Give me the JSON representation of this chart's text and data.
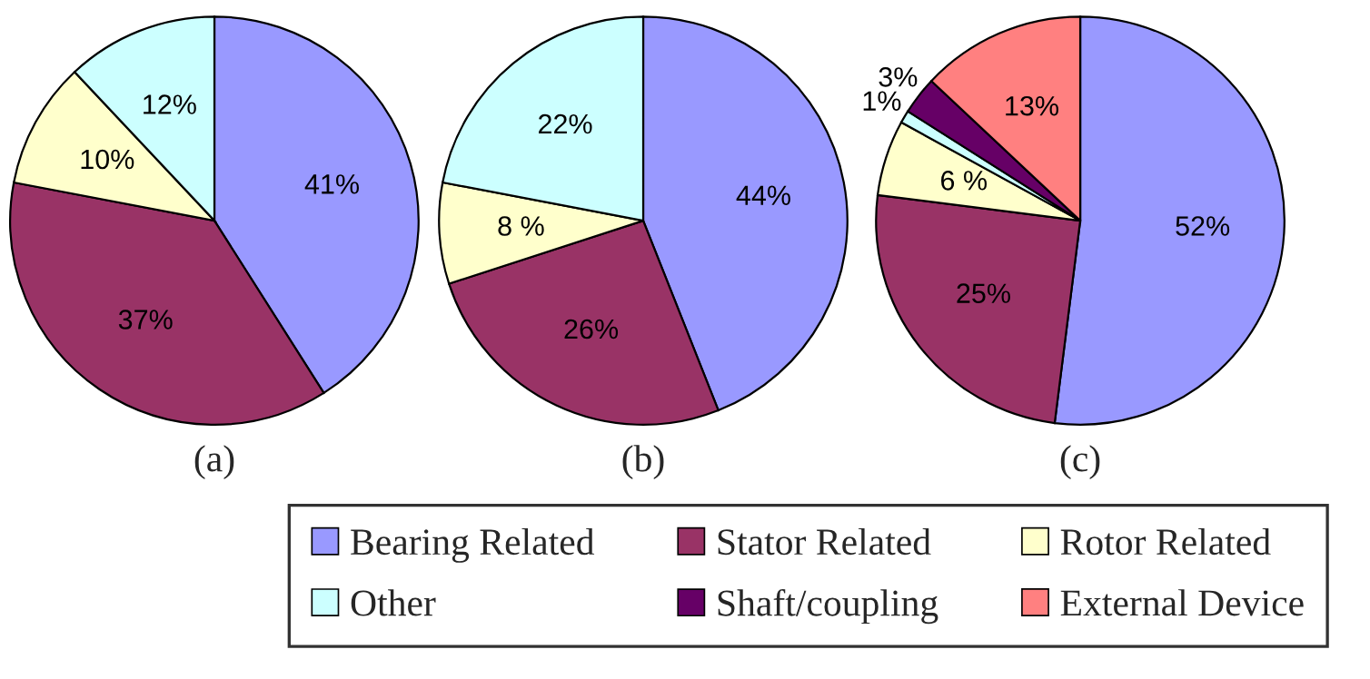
{
  "chart_data": [
    {
      "type": "pie",
      "xlabel": "(a)",
      "categories": [
        null,
        null,
        null,
        null
      ],
      "values": [
        41,
        37,
        10,
        12
      ],
      "value_labels": [
        "41%",
        "37%",
        "10%",
        "12%"
      ],
      "colors": [
        "#9999ff",
        "#993366",
        "#ffffcc",
        "#ccffff"
      ]
    },
    {
      "type": "pie",
      "xlabel": "(b)",
      "categories": [
        null,
        null,
        null,
        null
      ],
      "values": [
        44,
        26,
        8,
        22
      ],
      "value_labels": [
        "44%",
        "26%",
        "8 %",
        "22%"
      ],
      "colors": [
        "#9999ff",
        "#993366",
        "#ffffcc",
        "#ccffff"
      ]
    },
    {
      "type": "pie",
      "xlabel": "(c)",
      "legend": "bottom",
      "categories": [
        "Bearing Related",
        "Stator Related",
        "Rotor Related",
        "Other",
        "Shaft/coupling",
        "External Device"
      ],
      "values": [
        52,
        25,
        6,
        1,
        3,
        13
      ],
      "value_labels": [
        "52%",
        "25%",
        "6 %",
        "1%",
        "3%",
        "13%"
      ],
      "colors": [
        "#9999ff",
        "#993366",
        "#ffffcc",
        "#ccffff",
        "#660066",
        "#ff8080"
      ]
    }
  ]
}
